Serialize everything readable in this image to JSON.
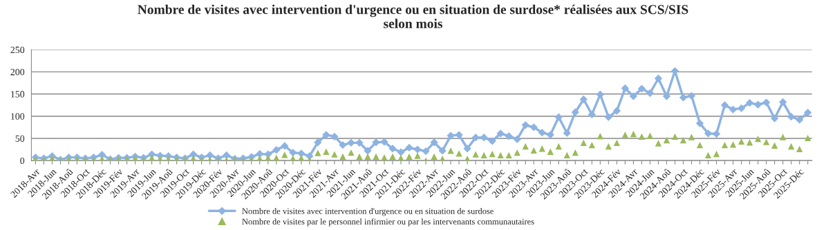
{
  "chart_data": {
    "type": "line",
    "title": "Nombre de visites avec intervention d'urgence ou en situation de surdose* réalisées aux SCS/SIS\nselon mois",
    "categories": [
      "2018-Avr",
      null,
      "2018-Jun",
      null,
      "2018-Aoû",
      null,
      "2018-Oct",
      null,
      "2018-Déc",
      null,
      "2019-Fév",
      null,
      "2019-Avr",
      null,
      "2019-Jun",
      null,
      "2019-Aoû",
      null,
      "2019-Oct",
      null,
      "2019-Déc",
      null,
      "2020-Fév",
      null,
      "2020-Avr",
      null,
      "2020-Jun",
      null,
      "2020-Aoû",
      null,
      "2020-Oct",
      null,
      "2020-Déc",
      null,
      "2021-Fév",
      null,
      "2021-Avr",
      null,
      "2021-Jun",
      null,
      "2021-Aoû",
      null,
      "2021-Oct",
      null,
      "2021-Déc",
      null,
      "2022-Fév",
      null,
      "2022-Avr",
      null,
      "2022-Jun",
      null,
      "2022-Aoû",
      null,
      "2022-Oct",
      null,
      "2022-Déc",
      null,
      "2023-Fév",
      null,
      "2023-Avr",
      null,
      "2023-Jun",
      null,
      "2023-Aoû",
      null,
      "2023-Oct",
      null,
      "2023-Déc",
      null,
      "2024-Fév",
      null,
      "2024-Avr",
      null,
      "2024-Jun",
      null,
      "2024-Aoû",
      null,
      "2024-Oct",
      null,
      "2024-Déc",
      null,
      "2025-Fév",
      null,
      "2025-Avr",
      null,
      "2025-Jun",
      null,
      "2025-Aoû",
      null,
      "2025-Oct",
      null,
      "2025-Déc",
      null
    ],
    "series": [
      {
        "name": "Nombre de visites avec intervention d'urgence ou en situation de surdose",
        "marker": "diamond",
        "line_style": "solid",
        "color": "#8db3e2",
        "values": [
          7,
          5,
          10,
          2,
          7,
          7,
          5,
          7,
          13,
          3,
          6,
          6,
          9,
          6,
          14,
          11,
          10,
          7,
          5,
          14,
          7,
          12,
          5,
          12,
          4,
          5,
          8,
          15,
          14,
          24,
          33,
          18,
          16,
          10,
          41,
          58,
          54,
          35,
          40,
          40,
          22,
          41,
          42,
          27,
          19,
          29,
          25,
          21,
          41,
          22,
          56,
          58,
          27,
          52,
          52,
          44,
          61,
          55,
          48,
          80,
          75,
          63,
          58,
          98,
          62,
          109,
          138,
          104,
          149,
          98,
          112,
          163,
          145,
          162,
          152,
          185,
          145,
          202,
          142,
          146,
          84,
          61,
          60,
          125,
          115,
          118,
          130,
          126,
          131,
          95,
          132,
          99,
          92,
          108
        ]
      },
      {
        "name": "Nombre de visites par le personnel infirmier ou par les intervenants communautaires",
        "type": "scatter",
        "marker": "triangle",
        "color": "#9bbb59",
        "values": [
          3,
          2,
          5,
          0,
          3,
          3,
          2,
          2,
          4,
          2,
          3,
          3,
          5,
          2,
          6,
          4,
          3,
          3,
          2,
          5,
          2,
          2,
          0,
          1,
          2,
          0,
          2,
          5,
          6,
          6,
          13,
          5,
          6,
          2,
          17,
          20,
          14,
          9,
          18,
          9,
          9,
          9,
          7,
          9,
          6,
          9,
          11,
          0,
          9,
          4,
          22,
          16,
          4,
          14,
          12,
          15,
          12,
          12,
          18,
          32,
          23,
          27,
          20,
          32,
          12,
          18,
          40,
          35,
          55,
          32,
          40,
          58,
          60,
          54,
          56,
          39,
          46,
          54,
          46,
          53,
          35,
          12,
          15,
          35,
          36,
          43,
          41,
          49,
          42,
          34,
          53,
          32,
          26,
          51
        ]
      }
    ],
    "ylim": [
      0,
      250
    ],
    "yticks": [
      0,
      50,
      100,
      150,
      200,
      250
    ],
    "grid": "y",
    "legend": "bottom"
  }
}
